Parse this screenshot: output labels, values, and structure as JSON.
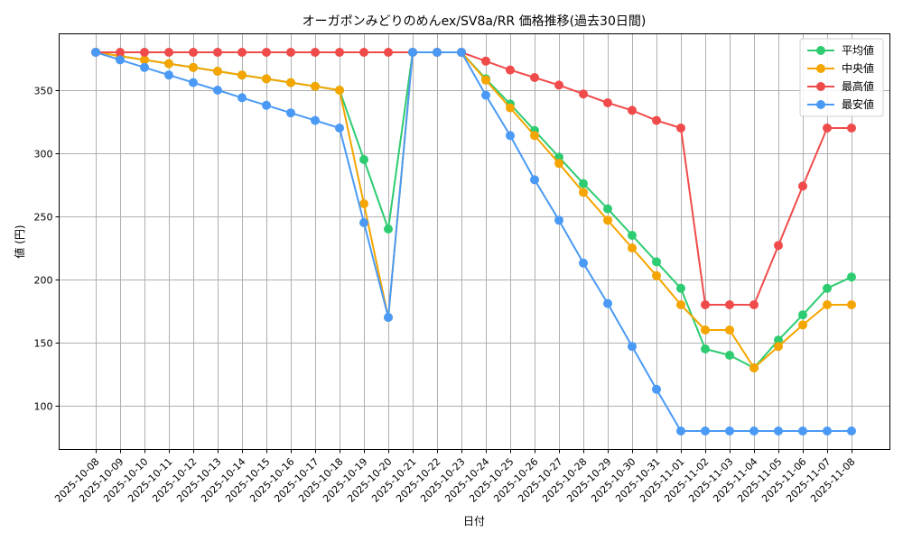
{
  "chart_data": {
    "type": "line",
    "title": "オーガポンみどりのめんex/SV8a/RR 価格推移(過去30日間)",
    "xlabel": "日付",
    "ylabel": "値 (円)",
    "ylim": [
      65,
      390
    ],
    "yticks": [
      100,
      150,
      200,
      250,
      300,
      350
    ],
    "grid": true,
    "legend_position": "upper right",
    "x": [
      "2025-10-08",
      "2025-10-09",
      "2025-10-10",
      "2025-10-11",
      "2025-10-12",
      "2025-10-13",
      "2025-10-14",
      "2025-10-15",
      "2025-10-16",
      "2025-10-17",
      "2025-10-18",
      "2025-10-19",
      "2025-10-20",
      "2025-10-21",
      "2025-10-22",
      "2025-10-23",
      "2025-10-24",
      "2025-10-25",
      "2025-10-26",
      "2025-10-27",
      "2025-10-28",
      "2025-10-29",
      "2025-10-30",
      "2025-10-31",
      "2025-11-01",
      "2025-11-02",
      "2025-11-03",
      "2025-11-04",
      "2025-11-05",
      "2025-11-06",
      "2025-11-07",
      "2025-11-08"
    ],
    "series": [
      {
        "name": "平均値",
        "color": "#2ecc71",
        "values": [
          380,
          377,
          374,
          371,
          368,
          365,
          362,
          359,
          356,
          353,
          350,
          295,
          240,
          380,
          380,
          380,
          359,
          339,
          318,
          297,
          276,
          256,
          235,
          214,
          193,
          145,
          140,
          130,
          152,
          172,
          193,
          202
        ]
      },
      {
        "name": "中央値",
        "color": "#f5a500",
        "values": [
          380,
          377,
          374,
          371,
          368,
          365,
          362,
          359,
          356,
          353,
          350,
          260,
          170,
          380,
          380,
          380,
          358,
          336,
          314,
          292,
          269,
          247,
          225,
          203,
          180,
          160,
          160,
          130,
          147,
          164,
          180,
          180
        ]
      },
      {
        "name": "最高値",
        "color": "#f04b4b",
        "values": [
          380,
          380,
          380,
          380,
          380,
          380,
          380,
          380,
          380,
          380,
          380,
          380,
          380,
          380,
          380,
          380,
          373,
          366,
          360,
          354,
          347,
          340,
          334,
          326,
          320,
          180,
          180,
          180,
          227,
          274,
          320,
          320
        ]
      },
      {
        "name": "最安値",
        "color": "#4a9af5",
        "values": [
          380,
          374,
          368,
          362,
          356,
          350,
          344,
          338,
          332,
          326,
          320,
          245,
          170,
          380,
          380,
          380,
          346,
          314,
          279,
          247,
          213,
          181,
          147,
          113,
          80,
          80,
          80,
          80,
          80,
          80,
          80,
          80
        ]
      }
    ]
  }
}
